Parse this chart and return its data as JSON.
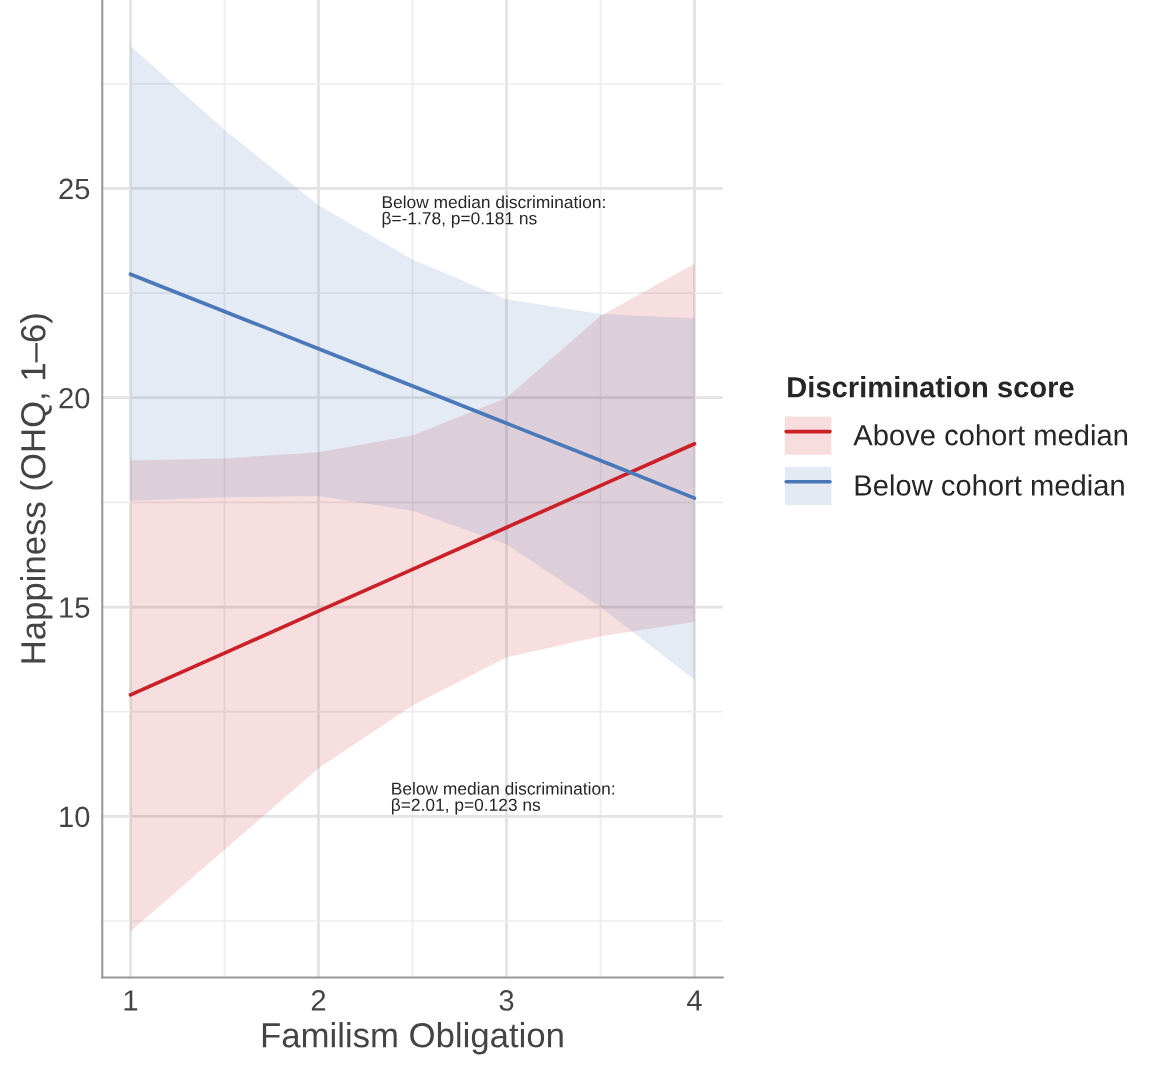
{
  "chart_data": {
    "type": "line",
    "xlabel": "Familism Obligation",
    "ylabel": "Happiness (OHQ, 1–6)",
    "legend_title": "Discrimination score",
    "legend": "right",
    "xlim": [
      0.85,
      4.15
    ],
    "ylim": [
      6.15,
      29.5
    ],
    "xticks": [
      1,
      2,
      3,
      4
    ],
    "yticks": [
      10,
      15,
      20,
      25
    ],
    "grid": true,
    "annotations": [
      "Below median discrimination:\nβ=-1.78, p=0.181 ns",
      "Below median discrimination:\nβ=2.01, p=0.123 ns"
    ],
    "series": [
      {
        "name": "Above cohort median",
        "color": "#cb2027",
        "x": [
          1,
          1.5,
          2,
          2.5,
          3,
          3.5,
          4
        ],
        "values": [
          12.9,
          13.9,
          14.9,
          15.9,
          16.9,
          17.9,
          18.9
        ],
        "lower": [
          7.25,
          9.2,
          11.15,
          12.65,
          13.8,
          14.3,
          14.64
        ],
        "upper": [
          18.5,
          18.55,
          18.7,
          19.1,
          20.0,
          21.95,
          23.2
        ]
      },
      {
        "name": "Below cohort median",
        "color": "#4a78b9",
        "x": [
          1,
          1.5,
          2,
          2.5,
          3,
          3.5,
          4
        ],
        "values": [
          22.95,
          22.06,
          21.17,
          20.28,
          19.39,
          18.5,
          17.6
        ],
        "lower": [
          17.54,
          17.62,
          17.65,
          17.3,
          16.5,
          15.0,
          13.26
        ],
        "upper": [
          28.4,
          26.4,
          24.6,
          23.3,
          22.35,
          22.0,
          21.9
        ]
      }
    ]
  }
}
